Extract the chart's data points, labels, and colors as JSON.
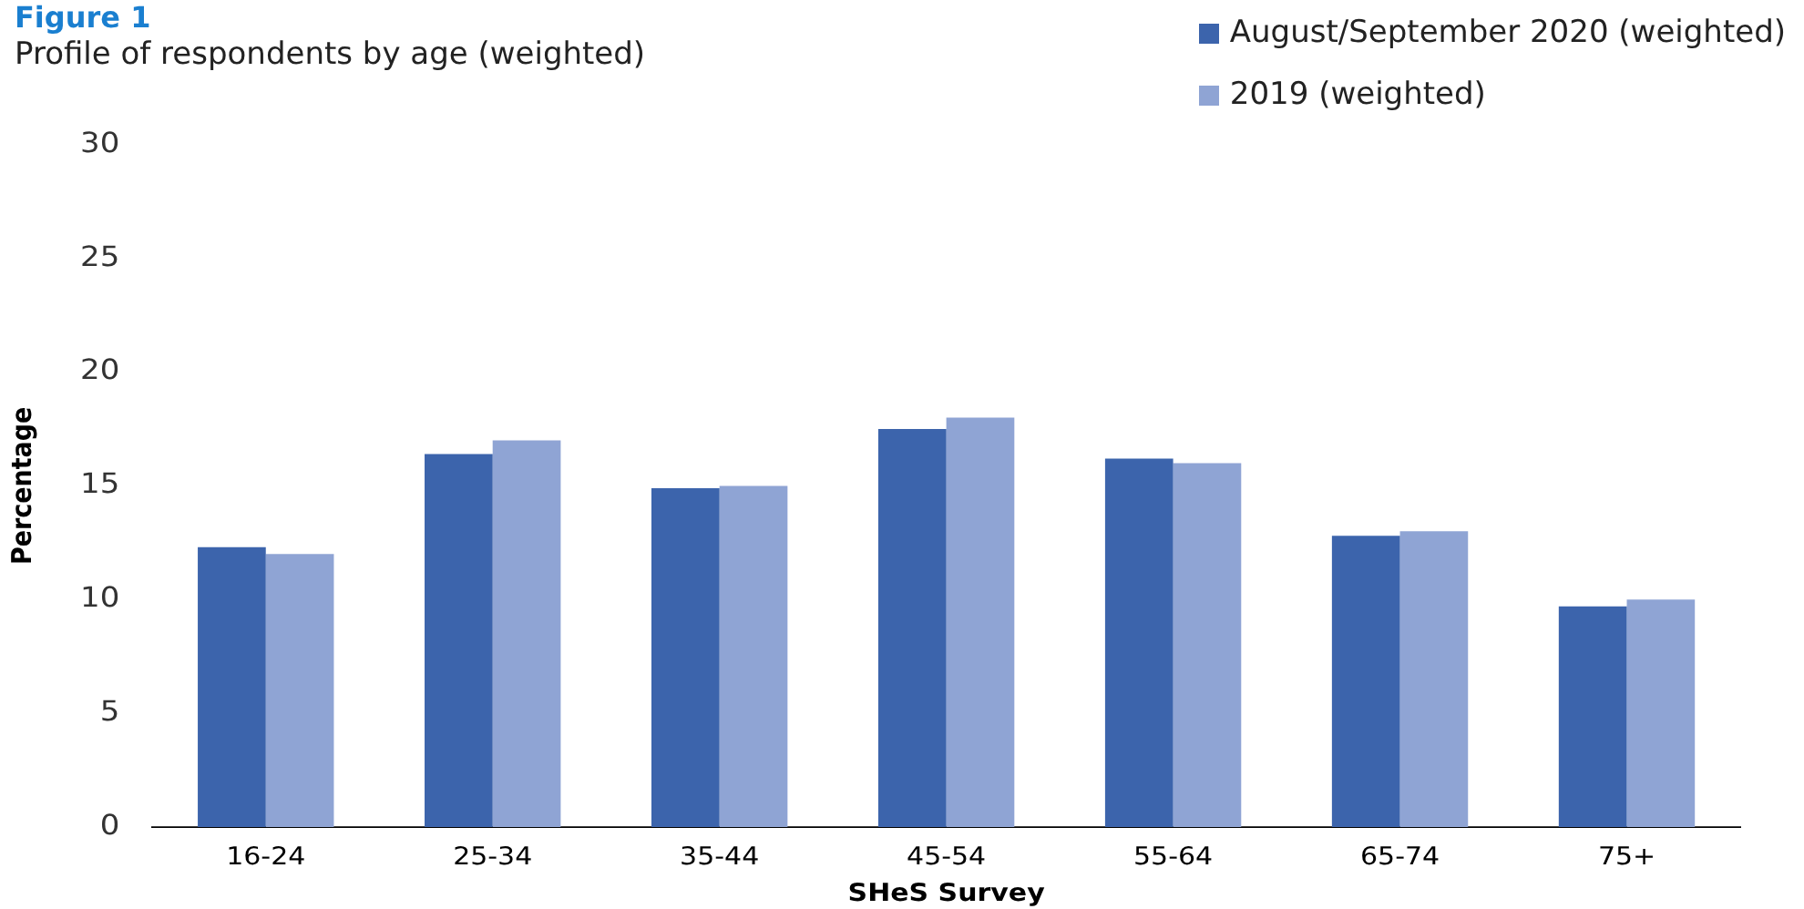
{
  "chart_data": {
    "type": "bar",
    "title": "Figure 1",
    "subtitle": "Profile of respondents by age (weighted)",
    "xlabel": "SHeS Survey",
    "ylabel": "Percentage",
    "categories": [
      "16-24",
      "25-34",
      "35-44",
      "45-54",
      "55-64",
      "65-74",
      "75+"
    ],
    "series": [
      {
        "name": "August/September 2020 (weighted)",
        "color": "#3c64ac",
        "values": [
          12.3,
          16.4,
          14.9,
          17.5,
          16.2,
          12.8,
          9.7
        ]
      },
      {
        "name": "2019 (weighted)",
        "color": "#8fa4d4",
        "values": [
          12.0,
          17.0,
          15.0,
          18.0,
          16.0,
          13.0,
          10.0
        ]
      }
    ],
    "ylim": [
      0,
      30
    ],
    "yticks": [
      0,
      5,
      10,
      15,
      20,
      25,
      30
    ],
    "grid": false,
    "legend": "top right"
  }
}
